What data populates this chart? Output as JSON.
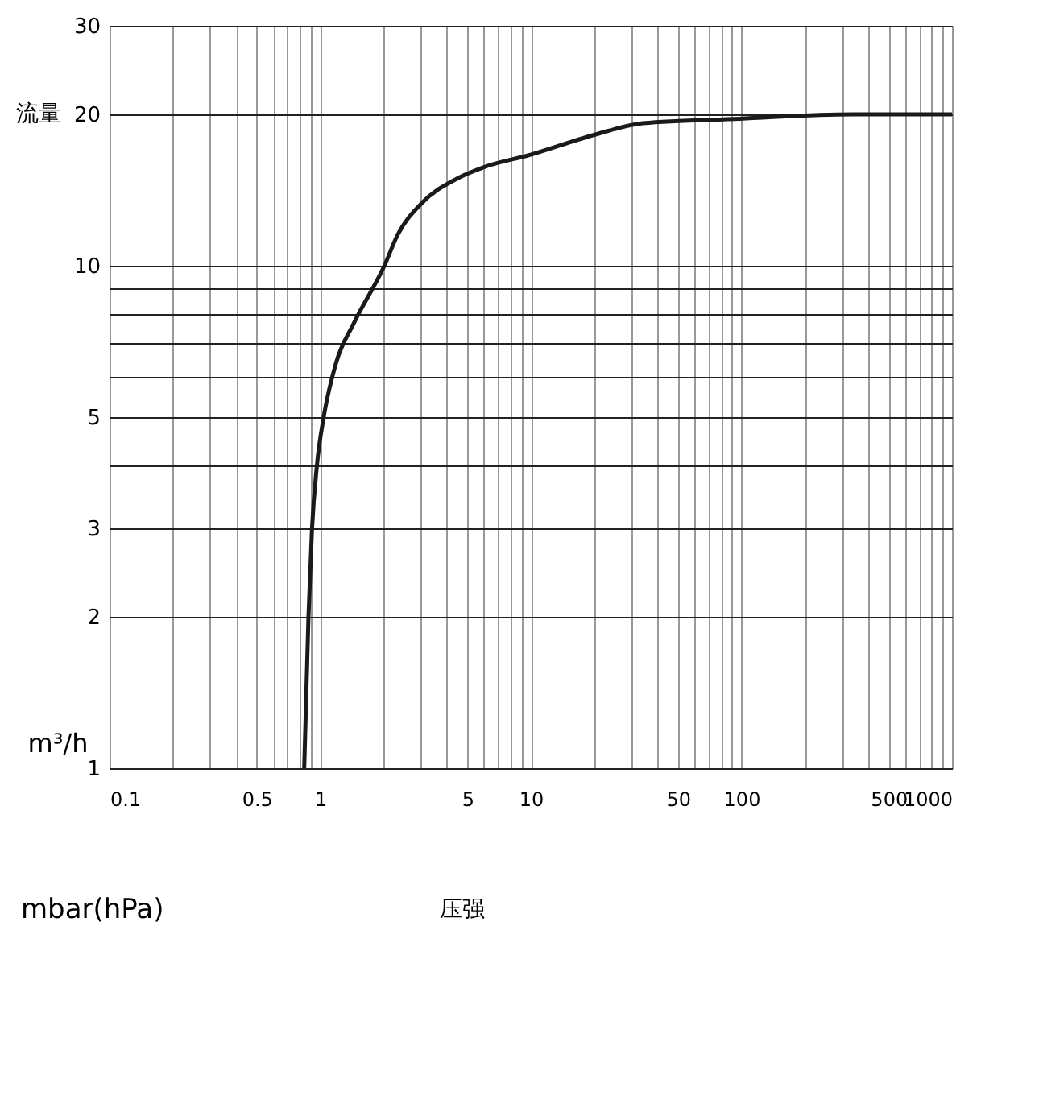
{
  "chart_data": {
    "type": "line",
    "xlabel": "mbar(hPa)",
    "ylabel": "m³/h",
    "annotations": [
      "流量",
      "压强"
    ],
    "x": [
      0.84,
      0.88,
      0.915,
      0.965,
      1.04,
      1.19,
      1.45,
      2.02,
      2.33,
      3.03,
      4.47,
      6.0,
      9.9,
      20,
      34,
      98,
      338,
      1000
    ],
    "series": [
      {
        "color": "#1a1a1a",
        "values": [
          1,
          2,
          3,
          4,
          5,
          6.4,
          7.7,
          10,
          11.5,
          13.3,
          14.9,
          15.7,
          16.6,
          18.2,
          19.2,
          19.6,
          20,
          20
        ]
      }
    ],
    "log": "xy",
    "grid": true,
    "marker": "none",
    "line_style": "solid",
    "xlim": [
      0.1,
      1000
    ],
    "ylim": [
      1,
      30
    ],
    "xticks": [
      0.1,
      {
        "value": 0.2,
        "label": null
      },
      {
        "value": 0.3,
        "label": null
      },
      {
        "value": 0.4,
        "label": null
      },
      0.5,
      {
        "value": 0.6,
        "label": null
      },
      {
        "value": 0.7,
        "label": null
      },
      {
        "value": 0.8,
        "label": null
      },
      {
        "value": 0.9,
        "label": null
      },
      1,
      {
        "value": 2,
        "label": null
      },
      {
        "value": 3,
        "label": null
      },
      {
        "value": 4,
        "label": null
      },
      5,
      {
        "value": 6,
        "label": null
      },
      {
        "value": 7,
        "label": null
      },
      {
        "value": 8,
        "label": null
      },
      {
        "value": 9,
        "label": null
      },
      10,
      {
        "value": 20,
        "label": null
      },
      {
        "value": 30,
        "label": null
      },
      {
        "value": 40,
        "label": null
      },
      50,
      {
        "value": 60,
        "label": null
      },
      {
        "value": 70,
        "label": null
      },
      {
        "value": 80,
        "label": null
      },
      {
        "value": 90,
        "label": null
      },
      100,
      {
        "value": 200,
        "label": null
      },
      {
        "value": 300,
        "label": null
      },
      {
        "value": 400,
        "label": null
      },
      500,
      {
        "value": 600,
        "label": null
      },
      {
        "value": 700,
        "label": null
      },
      {
        "value": 800,
        "label": null
      },
      {
        "value": 900,
        "label": null
      },
      1000
    ],
    "yticks": [
      1,
      2,
      3,
      {
        "value": 4,
        "label": null
      },
      5,
      {
        "value": 6,
        "label": null
      },
      {
        "value": 7,
        "label": null
      },
      {
        "value": 8,
        "label": null
      },
      {
        "value": 9,
        "label": null
      },
      10,
      20,
      30
    ]
  }
}
